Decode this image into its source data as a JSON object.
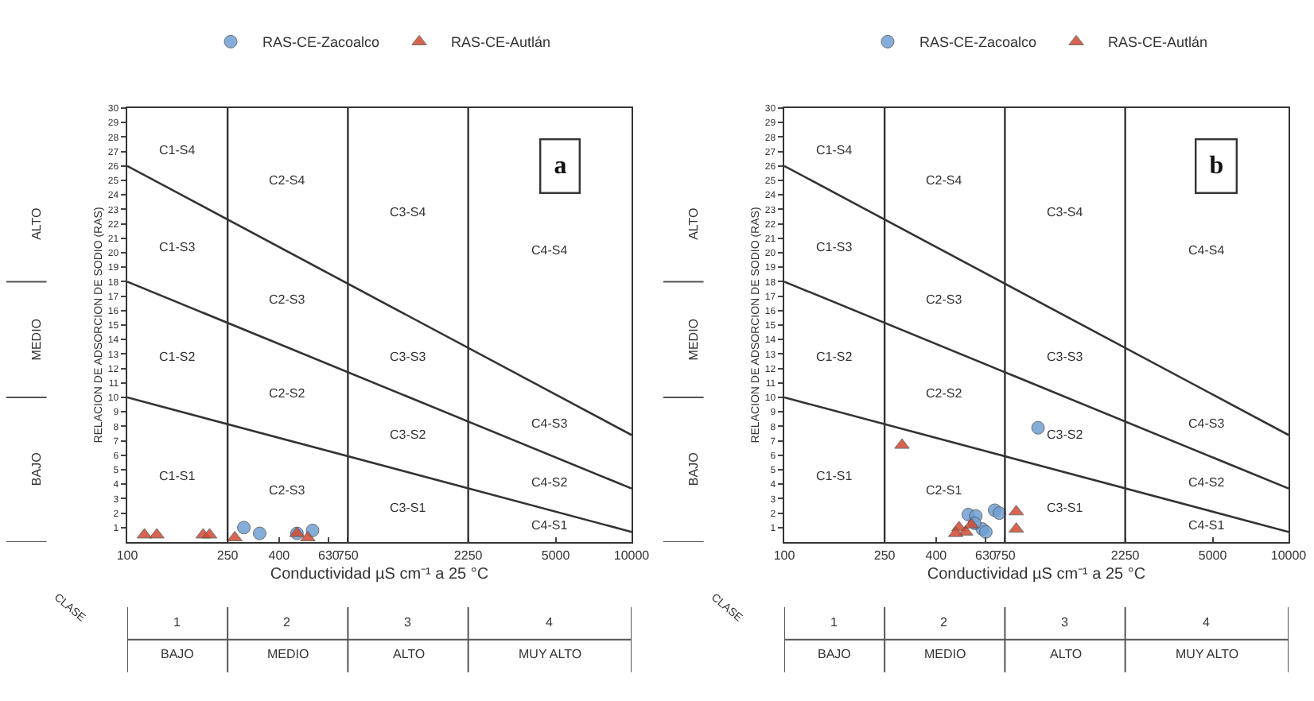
{
  "chart_data": [
    {
      "type": "scatter",
      "xlabel": "Conductividad µS cm⁻¹ a 25 °C",
      "ylabel": "RELACION DE ADSORCION DE SODIO (RAS)",
      "log": "x",
      "xlim": [
        100,
        10000
      ],
      "xticks": [
        100,
        250,
        400,
        630,
        750,
        2250,
        5000,
        10000
      ],
      "ylim": [
        0,
        30
      ],
      "yticks": [
        1,
        2,
        3,
        4,
        5,
        6,
        7,
        8,
        9,
        10,
        11,
        12,
        13,
        14,
        15,
        16,
        17,
        18,
        19,
        20,
        21,
        22,
        23,
        24,
        25,
        26,
        27,
        28,
        29,
        30
      ],
      "grid": false,
      "legend": "top",
      "series": [
        {
          "name": "RAS-CE-Zacoalco",
          "marker": "circle",
          "color": "#6f9fd3",
          "x": [
            290,
            335,
            471,
            543
          ],
          "values": [
            1.0,
            0.6,
            0.6,
            0.8
          ]
        },
        {
          "name": "RAS-CE-Autlán",
          "marker": "triangle",
          "color": "#d24a32",
          "x": [
            117,
            131,
            200,
            212,
            267,
            471,
            520
          ],
          "values": [
            0.5,
            0.5,
            0.5,
            0.5,
            0.3,
            0.6,
            0.3
          ]
        },
        {
          "type": "line",
          "color": "#333333",
          "x": [
            100,
            10000
          ],
          "values": [
            26,
            7.4
          ]
        },
        {
          "type": "line",
          "color": "#333333",
          "x": [
            100,
            10000
          ],
          "values": [
            18,
            3.7
          ]
        },
        {
          "type": "line",
          "color": "#333333",
          "x": [
            100,
            10000
          ],
          "values": [
            10,
            0.7
          ]
        }
      ],
      "ref_lines": [
        {
          "axis": "x",
          "value": 250,
          "color": "#333333"
        },
        {
          "axis": "x",
          "value": 750,
          "color": "#333333"
        },
        {
          "axis": "x",
          "value": 2250,
          "color": "#333333"
        }
      ],
      "annotations": [
        "a",
        "CLASE",
        "C1-S4",
        "C2-S4",
        "C3-S4",
        "C4-S4",
        "C1-S3",
        "C2-S3",
        "C3-S3",
        "C4-S3",
        "C1-S2",
        "C2-S2",
        "C3-S2",
        "C4-S2",
        "C1-S1",
        "C2-S3",
        "C3-S1",
        "C4-S1",
        "1",
        "2",
        "3",
        "4",
        "BAJO",
        "MEDIO",
        "ALTO",
        "MUY ALTO",
        "ALTO",
        "MEDIO",
        "BAJO"
      ]
    },
    {
      "type": "scatter",
      "xlabel": "Conductividad µS cm⁻¹ a 25 °C",
      "ylabel": "RELACION DE ADSORCION DE SODIO (RAS)",
      "log": "x",
      "xlim": [
        100,
        10000
      ],
      "xticks": [
        100,
        250,
        400,
        630,
        750,
        2250,
        5000,
        10000
      ],
      "ylim": [
        0,
        30
      ],
      "yticks": [
        1,
        2,
        3,
        4,
        5,
        6,
        7,
        8,
        9,
        10,
        11,
        12,
        13,
        14,
        15,
        16,
        17,
        18,
        19,
        20,
        21,
        22,
        23,
        24,
        25,
        26,
        27,
        28,
        29,
        30
      ],
      "grid": false,
      "legend": "top",
      "series": [
        {
          "name": "RAS-CE-Zacoalco",
          "marker": "circle",
          "color": "#6f9fd3",
          "x": [
            1015,
            537,
            575,
            683,
            713,
            610,
            630,
            569
          ],
          "values": [
            7.9,
            1.9,
            1.8,
            2.2,
            2.0,
            0.9,
            0.7,
            1.3
          ]
        },
        {
          "name": "RAS-CE-Autlán",
          "marker": "triangle",
          "color": "#d24a32",
          "x": [
            293,
            832,
            832,
            493,
            524,
            552,
            479
          ],
          "values": [
            6.7,
            2.1,
            0.9,
            1.0,
            0.7,
            1.2,
            0.6
          ]
        },
        {
          "type": "line",
          "color": "#333333",
          "x": [
            100,
            10000
          ],
          "values": [
            26,
            7.4
          ]
        },
        {
          "type": "line",
          "color": "#333333",
          "x": [
            100,
            10000
          ],
          "values": [
            18,
            3.7
          ]
        },
        {
          "type": "line",
          "color": "#333333",
          "x": [
            100,
            10000
          ],
          "values": [
            10,
            0.7
          ]
        }
      ],
      "ref_lines": [
        {
          "axis": "x",
          "value": 250,
          "color": "#333333"
        },
        {
          "axis": "x",
          "value": 750,
          "color": "#333333"
        },
        {
          "axis": "x",
          "value": 2250,
          "color": "#333333"
        }
      ],
      "annotations": [
        "b",
        "CLASE",
        "C1-S4",
        "C2-S4",
        "C3-S4",
        "C4-S4",
        "C1-S3",
        "C2-S3",
        "C3-S3",
        "C4-S3",
        "C1-S2",
        "C2-S2",
        "C3-S2",
        "C4-S2",
        "C1-S1",
        "C2-S1",
        "C3-S1",
        "C4-S1",
        "1",
        "2",
        "3",
        "4",
        "BAJO",
        "MEDIO",
        "ALTO",
        "MUY ALTO",
        "ALTO",
        "MEDIO",
        "BAJO"
      ]
    }
  ]
}
